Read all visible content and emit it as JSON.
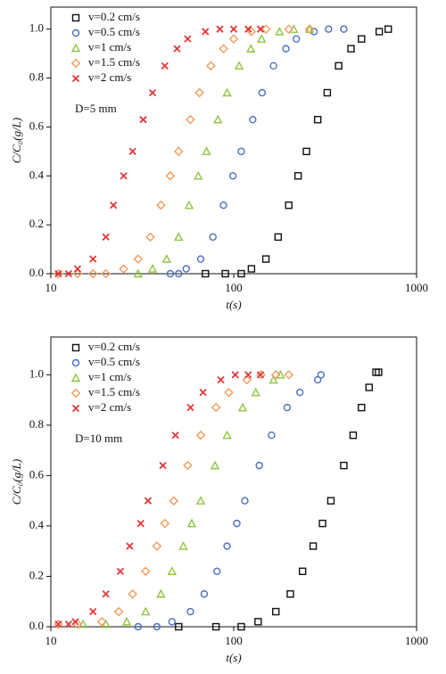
{
  "chart_data": [
    {
      "type": "scatter",
      "xlog": true,
      "xlabel": "t(s)",
      "ylabel": "C/C₀(g/L)",
      "annotation": "D=5 mm",
      "legend": "upper left",
      "xlim": [
        10,
        1000
      ],
      "xticks": [
        10,
        100,
        1000
      ],
      "ylim": [
        0,
        1.09
      ],
      "yticks": [
        {
          "value": 0,
          "label": "0.0"
        },
        {
          "value": 0.2,
          "label": "0.2"
        },
        {
          "value": 0.4,
          "label": "0.4"
        },
        {
          "value": 0.6,
          "label": "0.6"
        },
        {
          "value": 0.8,
          "label": "0.8"
        },
        {
          "value": 1,
          "label": "1.0"
        }
      ],
      "series": [
        {
          "name": "v=0.2 cm/s",
          "color": "#111111",
          "marker": "square",
          "x": [
            70,
            90,
            110,
            125,
            150,
            175,
            200,
            225,
            250,
            288,
            325,
            375,
            438,
            500,
            625,
            700
          ],
          "values": [
            0,
            0,
            0,
            0.02,
            0.06,
            0.15,
            0.28,
            0.4,
            0.5,
            0.63,
            0.74,
            0.85,
            0.92,
            0.96,
            0.99,
            1.0
          ]
        },
        {
          "name": "v=0.5 cm/s",
          "color": "#4a6fbf",
          "marker": "circle",
          "x": [
            45,
            50,
            55,
            66,
            77,
            88,
            99,
            110,
            127,
            143,
            165,
            193,
            220,
            275,
            330,
            400
          ],
          "values": [
            0,
            0,
            0.02,
            0.06,
            0.15,
            0.28,
            0.4,
            0.5,
            0.63,
            0.74,
            0.85,
            0.92,
            0.96,
            0.99,
            1.0,
            1.0
          ]
        },
        {
          "name": "v=1 cm/s",
          "color": "#8cc63f",
          "marker": "triangle",
          "x": [
            30,
            36,
            43,
            50,
            57,
            64,
            71,
            82,
            92,
            107,
            124,
            142,
            178,
            213,
            260
          ],
          "values": [
            0,
            0.02,
            0.06,
            0.15,
            0.28,
            0.4,
            0.5,
            0.63,
            0.74,
            0.85,
            0.92,
            0.96,
            0.99,
            1.0,
            1.0
          ]
        },
        {
          "name": "v=1.5 cm/s",
          "color": "#f39a5a",
          "marker": "diamond",
          "x": [
            11,
            14,
            17,
            20,
            25,
            30,
            35,
            40,
            45,
            50,
            58,
            65,
            75,
            88,
            100,
            125,
            150,
            200,
            260
          ],
          "values": [
            0,
            0,
            0,
            0,
            0.02,
            0.06,
            0.15,
            0.28,
            0.4,
            0.5,
            0.63,
            0.74,
            0.85,
            0.92,
            0.96,
            0.99,
            1.0,
            1.0,
            1.0
          ]
        },
        {
          "name": "v=2 cm/s",
          "color": "#e0393b",
          "marker": "cross",
          "x": [
            11,
            12.5,
            14,
            17,
            20,
            22,
            25,
            28,
            32,
            36,
            42,
            49,
            56,
            70,
            84,
            100,
            120,
            140
          ],
          "values": [
            0,
            0,
            0.02,
            0.06,
            0.15,
            0.28,
            0.4,
            0.5,
            0.63,
            0.74,
            0.85,
            0.92,
            0.96,
            0.99,
            1.0,
            1.0,
            1.0,
            1.0
          ]
        }
      ]
    },
    {
      "type": "scatter",
      "xlog": true,
      "xlabel": "t(s)",
      "ylabel": "C/C₀(g/L)",
      "annotation": "D=10 mm",
      "legend": "upper left",
      "xlim": [
        10,
        1000
      ],
      "xticks": [
        10,
        100,
        1000
      ],
      "ylim": [
        0,
        1.15
      ],
      "yticks": [
        {
          "value": 0,
          "label": "0.0"
        },
        {
          "value": 0.2,
          "label": "0.2"
        },
        {
          "value": 0.4,
          "label": "0.4"
        },
        {
          "value": 0.6,
          "label": "0.6"
        },
        {
          "value": 0.8,
          "label": "0.8"
        },
        {
          "value": 1,
          "label": "1.0"
        }
      ],
      "series": [
        {
          "name": "v=0.2 cm/s",
          "color": "#111111",
          "marker": "square",
          "x": [
            50,
            80,
            110,
            136,
            170,
            204,
            238,
            272,
            306,
            340,
            400,
            450,
            500,
            550,
            600,
            620
          ],
          "values": [
            0,
            0,
            0,
            0.02,
            0.06,
            0.13,
            0.22,
            0.32,
            0.41,
            0.5,
            0.64,
            0.76,
            0.87,
            0.95,
            1.01,
            1.01
          ]
        },
        {
          "name": "v=0.5 cm/s",
          "color": "#4a6fbf",
          "marker": "circle",
          "x": [
            30,
            38,
            46,
            58,
            69,
            81,
            92,
            104,
            115,
            138,
            161,
            196,
            230,
            288,
            300
          ],
          "values": [
            0,
            0,
            0.02,
            0.06,
            0.13,
            0.22,
            0.32,
            0.41,
            0.5,
            0.64,
            0.76,
            0.87,
            0.93,
            0.98,
            1.0
          ]
        },
        {
          "name": "v=1 cm/s",
          "color": "#8cc63f",
          "marker": "triangle",
          "x": [
            15,
            20,
            26,
            33,
            40,
            46,
            53,
            59,
            66,
            79,
            92,
            112,
            132,
            165,
            180
          ],
          "values": [
            0.01,
            0.01,
            0.02,
            0.06,
            0.13,
            0.22,
            0.32,
            0.41,
            0.5,
            0.64,
            0.76,
            0.87,
            0.93,
            0.98,
            1.0
          ]
        },
        {
          "name": "v=1.5 cm/s",
          "color": "#f39a5a",
          "marker": "diamond",
          "x": [
            11,
            14,
            19,
            23.5,
            28,
            33,
            38,
            42,
            47,
            56,
            66,
            80,
            94,
            118,
            141,
            170,
            200
          ],
          "values": [
            0.01,
            0.01,
            0.02,
            0.06,
            0.13,
            0.22,
            0.32,
            0.41,
            0.5,
            0.64,
            0.76,
            0.87,
            0.93,
            0.98,
            1.0,
            1.0,
            1.0
          ]
        },
        {
          "name": "v=2 cm/s",
          "color": "#e0393b",
          "marker": "cross",
          "x": [
            11,
            12.5,
            13.6,
            17,
            20,
            24,
            27,
            31,
            34,
            41,
            48,
            58,
            68,
            85,
            102,
            120,
            140
          ],
          "values": [
            0.01,
            0.01,
            0.02,
            0.06,
            0.13,
            0.22,
            0.32,
            0.41,
            0.5,
            0.64,
            0.76,
            0.87,
            0.93,
            0.98,
            1.0,
            1.0,
            1.0
          ]
        }
      ]
    }
  ]
}
